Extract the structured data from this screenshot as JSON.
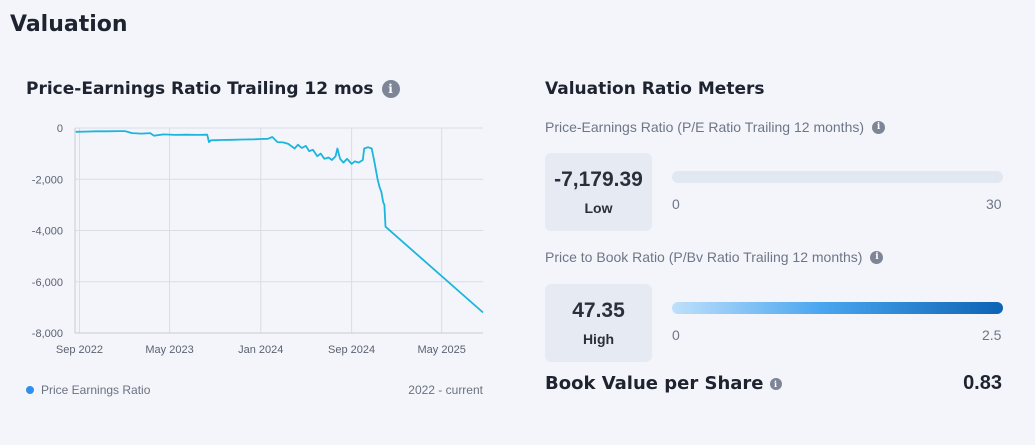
{
  "section": {
    "title": "Valuation"
  },
  "chart_panel": {
    "title": "Price-Earnings Ratio Trailing 12 mos",
    "legend_label": "Price Earnings Ratio",
    "range_label": "2022 - current"
  },
  "chart_data": {
    "type": "line",
    "title": "Price-Earnings Ratio Trailing 12 mos",
    "xlabel": "",
    "ylabel": "",
    "ylim": [
      -8000,
      0
    ],
    "yticks": [
      0,
      -2000,
      -4000,
      -6000,
      -8000
    ],
    "ytick_labels": [
      "0",
      "-2,000",
      "-4,000",
      "-6,000",
      "-8,000"
    ],
    "xlim": [
      "2022-08-20",
      "2025-08-20"
    ],
    "xticks": [
      "2022-09-01",
      "2023-05-01",
      "2024-01-01",
      "2024-09-01",
      "2025-05-01"
    ],
    "xtick_labels": [
      "Sep 2022",
      "May 2023",
      "Jan 2024",
      "Sep 2024",
      "May 2025"
    ],
    "grid": true,
    "legend": "bottom-left",
    "color": "#1cb5dc",
    "series": [
      {
        "name": "Price Earnings Ratio",
        "points": [
          [
            "2022-08-22",
            -150
          ],
          [
            "2022-09-15",
            -140
          ],
          [
            "2022-10-15",
            -130
          ],
          [
            "2022-11-15",
            -130
          ],
          [
            "2022-12-15",
            -120
          ],
          [
            "2023-01-01",
            -120
          ],
          [
            "2023-01-20",
            -200
          ],
          [
            "2023-02-15",
            -220
          ],
          [
            "2023-03-10",
            -200
          ],
          [
            "2023-03-20",
            -300
          ],
          [
            "2023-04-15",
            -250
          ],
          [
            "2023-05-15",
            -270
          ],
          [
            "2023-06-15",
            -260
          ],
          [
            "2023-07-15",
            -270
          ],
          [
            "2023-08-10",
            -260
          ],
          [
            "2023-08-15",
            -550
          ],
          [
            "2023-08-20",
            -480
          ],
          [
            "2023-09-15",
            -470
          ],
          [
            "2023-10-15",
            -460
          ],
          [
            "2023-11-15",
            -450
          ],
          [
            "2023-12-15",
            -440
          ],
          [
            "2024-01-01",
            -430
          ],
          [
            "2024-01-20",
            -420
          ],
          [
            "2024-02-01",
            -350
          ],
          [
            "2024-02-15",
            -550
          ],
          [
            "2024-03-01",
            -560
          ],
          [
            "2024-03-15",
            -620
          ],
          [
            "2024-04-01",
            -800
          ],
          [
            "2024-04-10",
            -650
          ],
          [
            "2024-04-20",
            -780
          ],
          [
            "2024-05-01",
            -700
          ],
          [
            "2024-05-10",
            -900
          ],
          [
            "2024-05-20",
            -850
          ],
          [
            "2024-06-01",
            -1100
          ],
          [
            "2024-06-10",
            -1000
          ],
          [
            "2024-06-20",
            -1200
          ],
          [
            "2024-07-01",
            -1150
          ],
          [
            "2024-07-10",
            -1250
          ],
          [
            "2024-07-20",
            -1100
          ],
          [
            "2024-07-25",
            -800
          ],
          [
            "2024-08-01",
            -1200
          ],
          [
            "2024-08-10",
            -1350
          ],
          [
            "2024-08-20",
            -1200
          ],
          [
            "2024-09-01",
            -1400
          ],
          [
            "2024-09-10",
            -1300
          ],
          [
            "2024-09-20",
            -1350
          ],
          [
            "2024-10-01",
            -1250
          ],
          [
            "2024-10-05",
            -800
          ],
          [
            "2024-10-15",
            -750
          ],
          [
            "2024-10-25",
            -800
          ],
          [
            "2024-11-01",
            -1300
          ],
          [
            "2024-11-10",
            -2000
          ],
          [
            "2024-11-15",
            -2300
          ],
          [
            "2024-11-20",
            -2500
          ],
          [
            "2024-11-25",
            -2900
          ],
          [
            "2024-11-28",
            -3000
          ],
          [
            "2024-12-01",
            -3850
          ],
          [
            "2025-08-20",
            -7200
          ]
        ]
      }
    ]
  },
  "meters": {
    "title": "Valuation Ratio Meters",
    "pe": {
      "caption": "Price-Earnings Ratio (P/E Ratio Trailing 12 months)",
      "value": "-7,179.39",
      "level": "Low",
      "min_label": "0",
      "max_label": "30"
    },
    "pb": {
      "caption": "Price to Book Ratio (P/Bv Ratio Trailing 12 months)",
      "value": "47.35",
      "level": "High",
      "min_label": "0",
      "max_label": "2.5"
    }
  },
  "bvps": {
    "label": "Book Value per Share",
    "value": "0.83"
  }
}
